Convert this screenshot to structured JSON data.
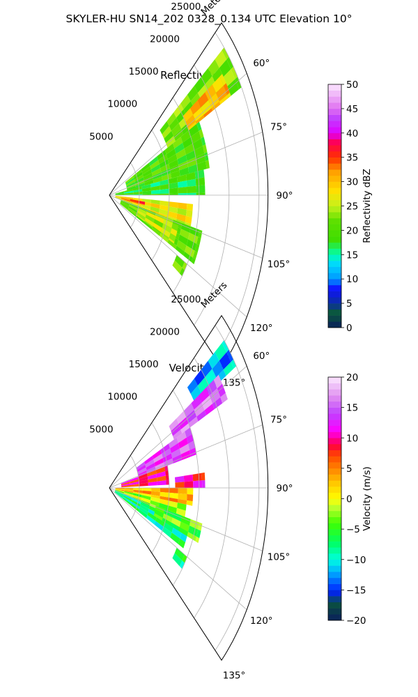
{
  "figure": {
    "suptitle": "SKYLER-HU  SN14_202  0328_0.134 UTC Elevation 10°"
  },
  "chart_data": [
    {
      "type": "heatmap",
      "subtype": "polar-sector (PPI)",
      "title": "Reflectivity",
      "range_axis_label": "Meters",
      "range_ticks": [
        5000,
        10000,
        15000,
        20000,
        25000
      ],
      "range_tick_labels": [
        "5000",
        "10000",
        "15000",
        "20000",
        "25000"
      ],
      "azimuth_range_deg": [
        45,
        135
      ],
      "azimuth_ticks": [
        60,
        75,
        90,
        105,
        120,
        135
      ],
      "azimuth_tick_labels": [
        "60°",
        "75°",
        "90°",
        "105°",
        "120°",
        "135°"
      ],
      "grid": true,
      "colorbar": {
        "label": "Reflectivity dBZ",
        "range": [
          0,
          50
        ],
        "ticks": [
          0,
          5,
          10,
          15,
          20,
          25,
          30,
          35,
          40,
          45,
          50
        ],
        "tick_labels": [
          "0",
          "5",
          "10",
          "15",
          "20",
          "25",
          "30",
          "35",
          "40",
          "45",
          "50"
        ],
        "colormap": "pyart_NWSRef"
      },
      "echo_regions": [
        {
          "az": [
            50,
            62
          ],
          "r": [
            11000,
            25000
          ],
          "value": 22
        },
        {
          "az": [
            55,
            62
          ],
          "r": [
            15000,
            23000
          ],
          "value": 30
        },
        {
          "az": [
            62,
            80
          ],
          "r": [
            3000,
            17000
          ],
          "value": 20
        },
        {
          "az": [
            80,
            90
          ],
          "r": [
            1000,
            16000
          ],
          "value": 18
        },
        {
          "az": [
            94,
            104
          ],
          "r": [
            1000,
            14000
          ],
          "value": 27
        },
        {
          "az": [
            97,
            101
          ],
          "r": [
            2000,
            6000
          ],
          "value": 34
        },
        {
          "az": [
            104,
            118
          ],
          "r": [
            2000,
            16000
          ],
          "value": 21
        },
        {
          "az": [
            106,
            116
          ],
          "r": [
            5000,
            12000
          ],
          "value": 25
        },
        {
          "az": [
            120,
            126
          ],
          "r": [
            13000,
            15000
          ],
          "value": 22
        }
      ]
    },
    {
      "type": "heatmap",
      "subtype": "polar-sector (PPI)",
      "title": "Velocity",
      "range_axis_label": "Meters",
      "range_ticks": [
        5000,
        10000,
        15000,
        20000,
        25000
      ],
      "range_tick_labels": [
        "5000",
        "10000",
        "15000",
        "20000",
        "25000"
      ],
      "azimuth_range_deg": [
        45,
        135
      ],
      "azimuth_ticks": [
        60,
        75,
        90,
        105,
        120,
        135
      ],
      "azimuth_tick_labels": [
        "60°",
        "75°",
        "90°",
        "105°",
        "120°",
        "135°"
      ],
      "grid": true,
      "colorbar": {
        "label": "Velocity (m/s)",
        "range": [
          -20,
          20
        ],
        "ticks": [
          -20,
          -15,
          -10,
          -5,
          0,
          5,
          10,
          15,
          20
        ],
        "tick_labels": [
          "−20",
          "−15",
          "−10",
          "−5",
          "0",
          "5",
          "10",
          "15",
          "20"
        ],
        "colormap": "pyart_BuDRd18"
      },
      "echo_regions": [
        {
          "az": [
            50,
            58
          ],
          "r": [
            17000,
            25000
          ],
          "value": -12
        },
        {
          "az": [
            56,
            64
          ],
          "r": [
            12000,
            22000
          ],
          "value": 15
        },
        {
          "az": [
            64,
            76
          ],
          "r": [
            5000,
            15000
          ],
          "value": 14
        },
        {
          "az": [
            76,
            88
          ],
          "r": [
            2000,
            10000
          ],
          "value": 9
        },
        {
          "az": [
            84,
            90
          ],
          "r": [
            11000,
            16000
          ],
          "value": 10
        },
        {
          "az": [
            90,
            98
          ],
          "r": [
            1000,
            14000
          ],
          "value": 3
        },
        {
          "az": [
            98,
            106
          ],
          "r": [
            1000,
            13000
          ],
          "value": -2
        },
        {
          "az": [
            106,
            118
          ],
          "r": [
            1000,
            14000
          ],
          "value": -8
        },
        {
          "az": [
            104,
            112
          ],
          "r": [
            8000,
            16000
          ],
          "value": -4
        },
        {
          "az": [
            120,
            126
          ],
          "r": [
            13000,
            15000
          ],
          "value": -7
        }
      ]
    }
  ]
}
